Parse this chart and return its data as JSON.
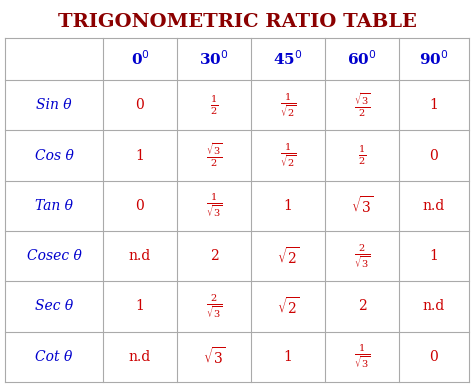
{
  "title": "TRIGONOMETRIC RATIO TABLE",
  "title_color": "#8B0000",
  "background_color": "#FFFFFF",
  "header_color": "#0000CD",
  "data_color": "#CC0000",
  "row_label_color": "#0000CD",
  "row_labels": [
    "Sin θ",
    "Cos θ",
    "Tan θ",
    "Cosec θ",
    "Sec θ",
    "Cot θ"
  ],
  "col_header_labels": [
    "0$^0$",
    "30$^0$",
    "45$^0$",
    "60$^0$",
    "90$^0$"
  ],
  "cell_data": [
    [
      "0",
      "$\\frac{1}{2}$",
      "$\\frac{1}{\\sqrt{2}}$",
      "$\\frac{\\sqrt{3}}{2}$",
      "1"
    ],
    [
      "1",
      "$\\frac{\\sqrt{3}}{2}$",
      "$\\frac{1}{\\sqrt{2}}$",
      "$\\frac{1}{2}$",
      "0"
    ],
    [
      "0",
      "$\\frac{1}{\\sqrt{3}}$",
      "1",
      "$\\sqrt{3}$",
      "n.d"
    ],
    [
      "n.d",
      "2",
      "$\\sqrt{2}$",
      "$\\frac{2}{\\sqrt{3}}$",
      "1"
    ],
    [
      "1",
      "$\\frac{2}{\\sqrt{3}}$",
      "$\\sqrt{2}$",
      "2",
      "n.d"
    ],
    [
      "n.d",
      "$\\sqrt{3}$",
      "1",
      "$\\frac{1}{\\sqrt{3}}$",
      "0"
    ]
  ],
  "figsize": [
    4.74,
    3.87
  ],
  "dpi": 100,
  "grid_color": "#AAAAAA",
  "title_fontsize": 14,
  "header_fontsize": 11,
  "row_label_fontsize": 10,
  "cell_fontsize": 10
}
